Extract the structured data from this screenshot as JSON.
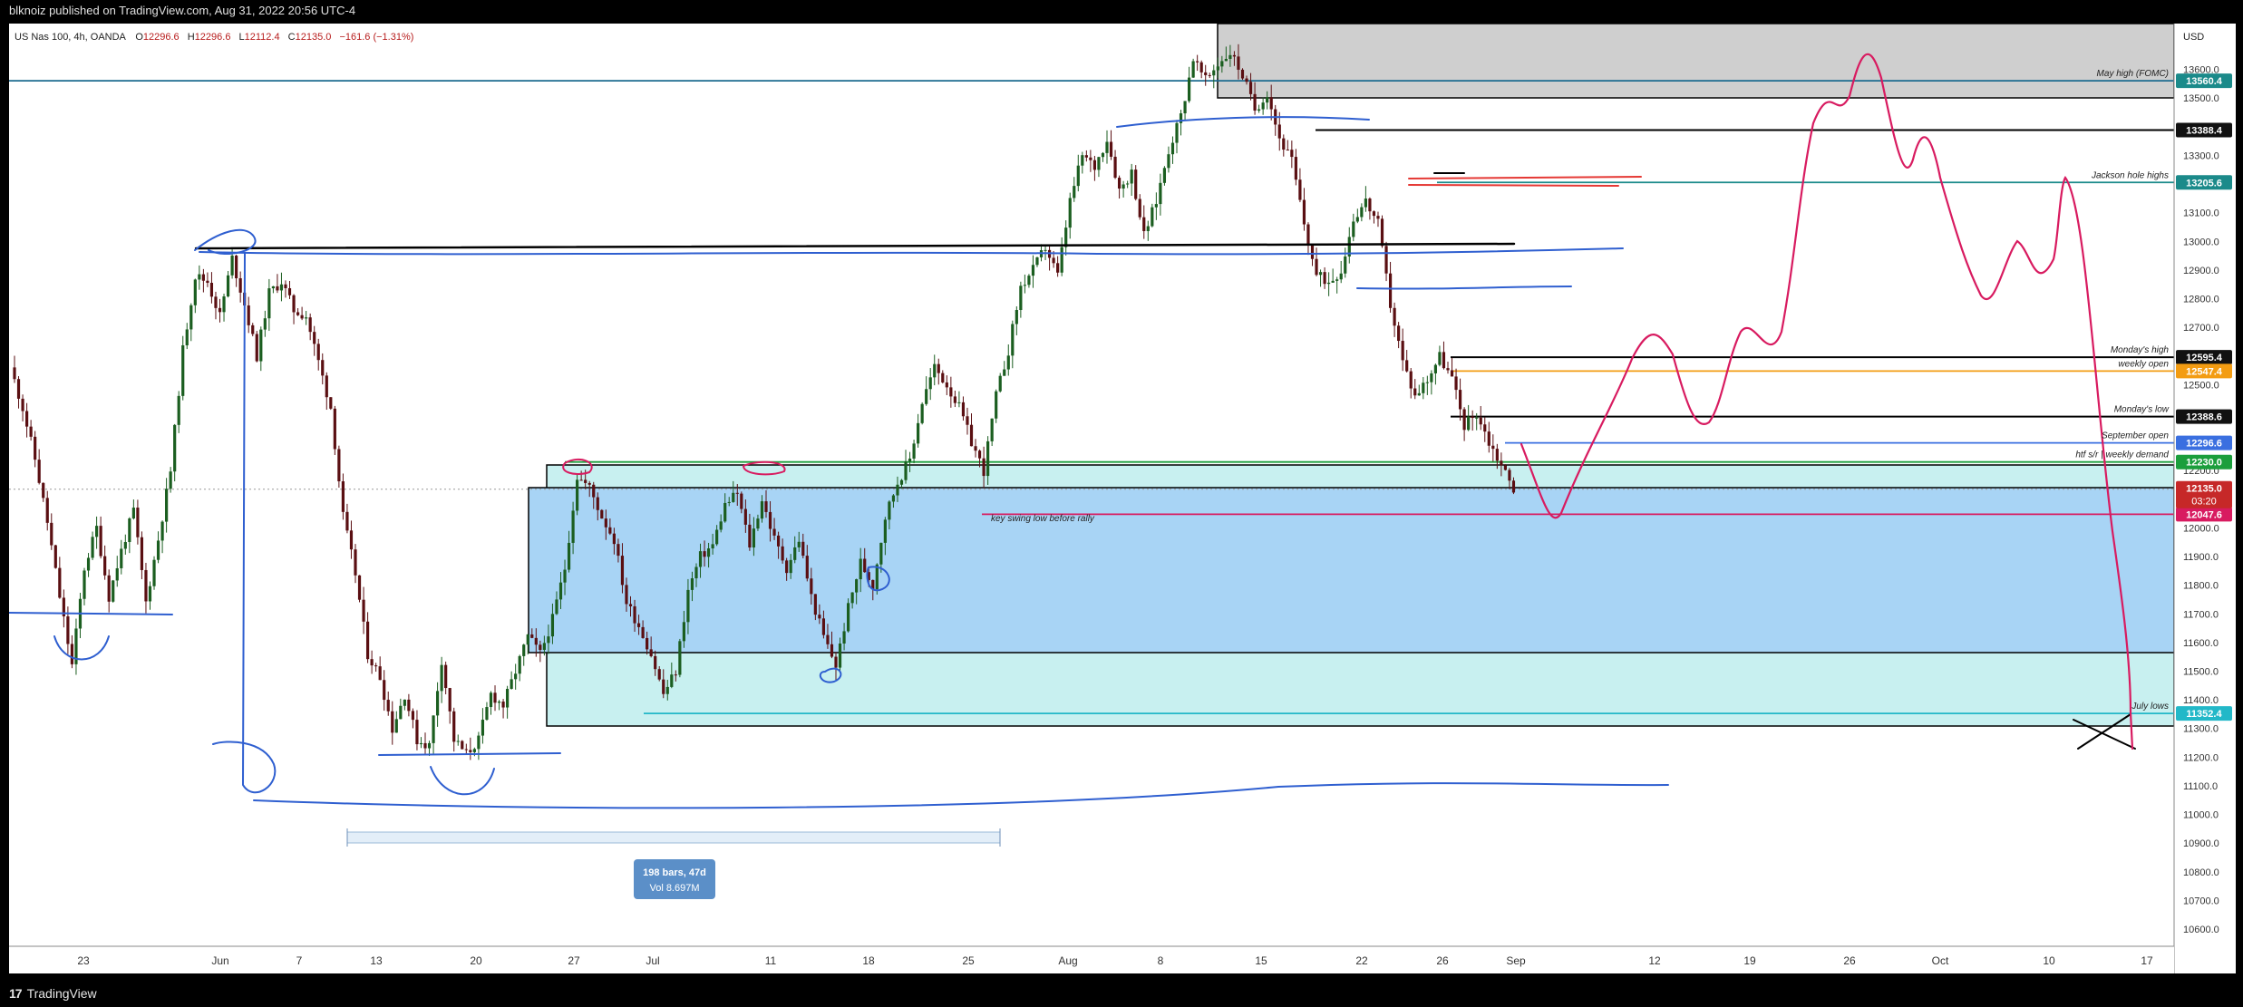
{
  "header": {
    "publish_text": "blknoiz published on TradingView.com, Aug 31, 2022 20:56 UTC-4"
  },
  "footer": {
    "logo_text": "TradingView",
    "logo_mark": "17"
  },
  "legend": {
    "symbol": "US Nas 100, 4h, OANDA",
    "open_label": "O",
    "open": "12296.6",
    "high_label": "H",
    "high": "12296.6",
    "low_label": "L",
    "low": "12112.4",
    "close_label": "C",
    "close": "12135.0",
    "change": "−161.6 (−1.31%)"
  },
  "colors": {
    "bull": "#1b5e20",
    "bear": "#5a0f12",
    "drawing_blue": "#2f5fd0",
    "projection": "#d81b60",
    "zone_light": "#c8f0f0",
    "zone_blue": "#a8d4f5",
    "zone_grey": "#cfcfcf"
  },
  "chart_data": {
    "type": "candlestick",
    "symbol": "US Nas 100",
    "timeframe": "4h",
    "currency": "USD",
    "x_ticks": [
      "23",
      "Jun",
      "7",
      "13",
      "20",
      "27",
      "Jul",
      "11",
      "18",
      "25",
      "Aug",
      "8",
      "15",
      "22",
      "26",
      "Sep",
      "12",
      "19",
      "26",
      "Oct",
      "10",
      "17"
    ],
    "y_ticks": [
      "13600.0",
      "13500.0",
      "13400.0",
      "13300.0",
      "13200.0",
      "13100.0",
      "13000.0",
      "12900.0",
      "12800.0",
      "12700.0",
      "12600.0",
      "12500.0",
      "12400.0",
      "12300.0",
      "12200.0",
      "12100.0",
      "12000.0",
      "11900.0",
      "11800.0",
      "11700.0",
      "11600.0",
      "11500.0",
      "11400.0",
      "11300.0",
      "11200.0",
      "11100.0",
      "11000.0",
      "10900.0",
      "10800.0",
      "10700.0",
      "10600.0"
    ],
    "ylim": [
      10540,
      13760
    ],
    "last_close": 12135.0,
    "countdown": "03:20",
    "price_path_closes": [
      12560,
      12420,
      12240,
      12020,
      11760,
      11520,
      11860,
      12000,
      11760,
      11920,
      12060,
      11740,
      11960,
      12200,
      12620,
      12880,
      12860,
      12740,
      12940,
      12780,
      12600,
      12820,
      12860,
      12760,
      12740,
      12580,
      12420,
      12040,
      11840,
      11560,
      11480,
      11300,
      11420,
      11260,
      11240,
      11540,
      11260,
      11210,
      11260,
      11420,
      11380,
      11500,
      11620,
      11560,
      11680,
      11860,
      12180,
      12140,
      12040,
      11960,
      11740,
      11660,
      11560,
      11420,
      11500,
      11780,
      11900,
      11940,
      12080,
      12120,
      11940,
      12100,
      11960,
      11860,
      11960,
      11760,
      11620,
      11520,
      11720,
      11880,
      11800,
      12040,
      12160,
      12240,
      12440,
      12560,
      12500,
      12420,
      12300,
      12200,
      12460,
      12620,
      12840,
      12900,
      12980,
      12880,
      13140,
      13300,
      13260,
      13360,
      13180,
      13240,
      13020,
      13140,
      13320,
      13440,
      13640,
      13560,
      13620,
      13660,
      13580,
      13460,
      13520,
      13360,
      13280,
      13060,
      12880,
      12860,
      12900,
      13080,
      13140,
      13060,
      12780,
      12580,
      12460,
      12520,
      12600,
      12520,
      12360,
      12400,
      12300,
      12220,
      12135
    ],
    "series_projection_name": "",
    "annotations": {
      "key_swing": "key swing low before rally",
      "measure_bars": "198 bars, 47d",
      "measure_vol": "Vol 8.697M"
    },
    "levels": [
      {
        "price": 13560.4,
        "tag": "13560.4",
        "label": "May high (FOMC)",
        "line_color": "#1c6b8f",
        "tag_color": "#1b8a8a",
        "text_color": "#ffffff"
      },
      {
        "price": 13388.4,
        "tag": "13388.4",
        "label": "",
        "line_color": "#000000",
        "tag_color": "#111111",
        "text_color": "#ffffff"
      },
      {
        "price": 13205.6,
        "tag": "13205.6",
        "label": "Jackson hole highs",
        "line_color": "#1b8a8a",
        "tag_color": "#1b8a8a",
        "text_color": "#ffffff"
      },
      {
        "price": 12595.4,
        "tag": "12595.4",
        "label": "Monday's high",
        "line_color": "#000000",
        "tag_color": "#111111",
        "text_color": "#ffffff"
      },
      {
        "price": 12547.4,
        "tag": "12547.4",
        "label": "weekly open",
        "line_color": "#f39c12",
        "tag_color": "#f39c12",
        "text_color": "#ffffff"
      },
      {
        "price": 12388.6,
        "tag": "12388.6",
        "label": "Monday's low",
        "line_color": "#000000",
        "tag_color": "#111111",
        "text_color": "#ffffff"
      },
      {
        "price": 12296.6,
        "tag": "12296.6",
        "label": "September open",
        "line_color": "#3a6fe0",
        "tag_color": "#3a6fe0",
        "text_color": "#ffffff"
      },
      {
        "price": 12230.0,
        "tag": "12230.0",
        "label": "htf s/r | weekly demand",
        "line_color": "#1b9e3c",
        "tag_color": "#1b9e3c",
        "text_color": "#ffffff"
      },
      {
        "price": 12047.6,
        "tag": "12047.6",
        "label": "",
        "line_color": "#d81b60",
        "tag_color": "#d81b60",
        "text_color": "#ffffff"
      },
      {
        "price": 11352.4,
        "tag": "11352.4",
        "label": "July lows",
        "line_color": "#22b8c8",
        "tag_color": "#22b8c8",
        "text_color": "#ffffff"
      }
    ]
  }
}
